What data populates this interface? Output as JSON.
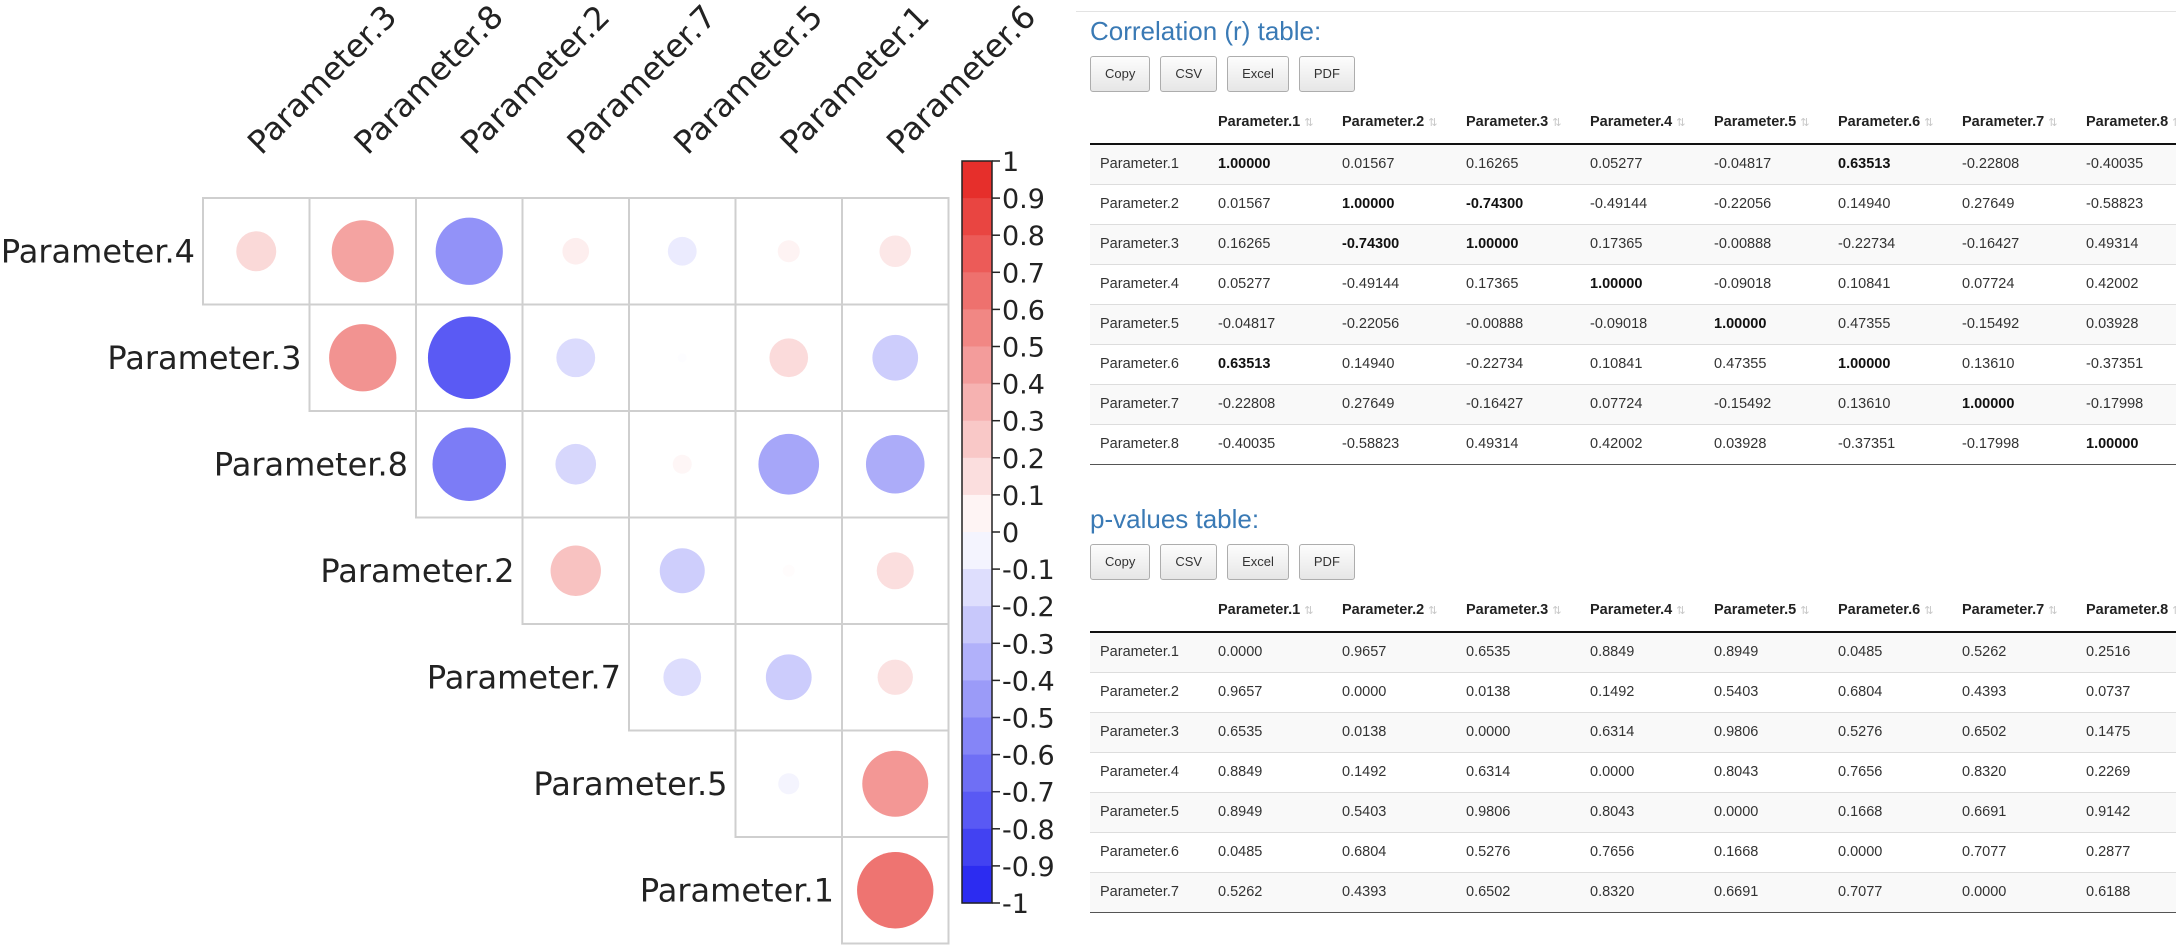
{
  "corrplot": {
    "variables": [
      "Parameter.4",
      "Parameter.3",
      "Parameter.8",
      "Parameter.2",
      "Parameter.7",
      "Parameter.5",
      "Parameter.1",
      "Parameter.6"
    ],
    "colorbar_ticks": [
      "1",
      "0.9",
      "0.8",
      "0.7",
      "0.6",
      "0.5",
      "0.4",
      "0.3",
      "0.2",
      "0.1",
      "0",
      "-0.1",
      "-0.2",
      "-0.3",
      "-0.4",
      "-0.5",
      "-0.6",
      "-0.7",
      "-0.8",
      "-0.9",
      "-1"
    ],
    "colors": {
      "positive": "#e52420",
      "negative": "#2121f0",
      "grid": "#cfcfcf"
    }
  },
  "correlation": {
    "title": "Correlation (r) table:",
    "buttons": [
      "Copy",
      "CSV",
      "Excel",
      "PDF"
    ],
    "columns": [
      "",
      "Parameter.1",
      "Parameter.2",
      "Parameter.3",
      "Parameter.4",
      "Parameter.5",
      "Parameter.6",
      "Parameter.7",
      "Parameter.8"
    ],
    "rows": [
      [
        "Parameter.1",
        "1.00000",
        "0.01567",
        "0.16265",
        "0.05277",
        "-0.04817",
        "0.63513",
        "-0.22808",
        "-0.40035"
      ],
      [
        "Parameter.2",
        "0.01567",
        "1.00000",
        "-0.74300",
        "-0.49144",
        "-0.22056",
        "0.14940",
        "0.27649",
        "-0.58823"
      ],
      [
        "Parameter.3",
        "0.16265",
        "-0.74300",
        "1.00000",
        "0.17365",
        "-0.00888",
        "-0.22734",
        "-0.16427",
        "0.49314"
      ],
      [
        "Parameter.4",
        "0.05277",
        "-0.49144",
        "0.17365",
        "1.00000",
        "-0.09018",
        "0.10841",
        "0.07724",
        "0.42002"
      ],
      [
        "Parameter.5",
        "-0.04817",
        "-0.22056",
        "-0.00888",
        "-0.09018",
        "1.00000",
        "0.47355",
        "-0.15492",
        "0.03928"
      ],
      [
        "Parameter.6",
        "0.63513",
        "0.14940",
        "-0.22734",
        "0.10841",
        "0.47355",
        "1.00000",
        "0.13610",
        "-0.37351"
      ],
      [
        "Parameter.7",
        "-0.22808",
        "0.27649",
        "-0.16427",
        "0.07724",
        "-0.15492",
        "0.13610",
        "1.00000",
        "-0.17998"
      ],
      [
        "Parameter.8",
        "-0.40035",
        "-0.58823",
        "0.49314",
        "0.42002",
        "0.03928",
        "-0.37351",
        "-0.17998",
        "1.00000"
      ]
    ]
  },
  "pvalues": {
    "title": "p-values table:",
    "buttons": [
      "Copy",
      "CSV",
      "Excel",
      "PDF"
    ],
    "columns": [
      "",
      "Parameter.1",
      "Parameter.2",
      "Parameter.3",
      "Parameter.4",
      "Parameter.5",
      "Parameter.6",
      "Parameter.7",
      "Parameter.8"
    ],
    "rows": [
      [
        "Parameter.1",
        "0.0000",
        "0.9657",
        "0.6535",
        "0.8849",
        "0.8949",
        "0.0485",
        "0.5262",
        "0.2516"
      ],
      [
        "Parameter.2",
        "0.9657",
        "0.0000",
        "0.0138",
        "0.1492",
        "0.5403",
        "0.6804",
        "0.4393",
        "0.0737"
      ],
      [
        "Parameter.3",
        "0.6535",
        "0.0138",
        "0.0000",
        "0.6314",
        "0.9806",
        "0.5276",
        "0.6502",
        "0.1475"
      ],
      [
        "Parameter.4",
        "0.8849",
        "0.1492",
        "0.6314",
        "0.0000",
        "0.8043",
        "0.7656",
        "0.8320",
        "0.2269"
      ],
      [
        "Parameter.5",
        "0.8949",
        "0.5403",
        "0.9806",
        "0.8043",
        "0.0000",
        "0.1668",
        "0.6691",
        "0.9142"
      ],
      [
        "Parameter.6",
        "0.0485",
        "0.6804",
        "0.5276",
        "0.7656",
        "0.1668",
        "0.0000",
        "0.7077",
        "0.2877"
      ],
      [
        "Parameter.7",
        "0.5262",
        "0.4393",
        "0.6502",
        "0.8320",
        "0.6691",
        "0.7077",
        "0.0000",
        "0.6188"
      ]
    ]
  }
}
